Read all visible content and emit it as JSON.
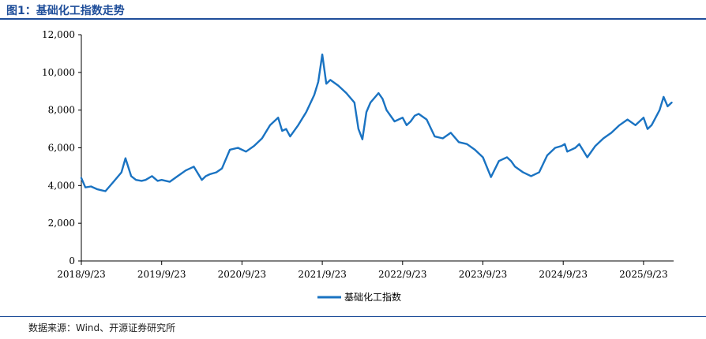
{
  "header": {
    "title": "图1：基础化工指数走势"
  },
  "footer": {
    "source": "数据来源：Wind、开源证券研究所"
  },
  "colors": {
    "line": "#1a73c2",
    "rule": "#1f4e9a",
    "axis": "#000000"
  },
  "chart_data": {
    "type": "line",
    "title": "图1：基础化工指数走势",
    "xlabel": "",
    "ylabel": "",
    "ylim": [
      0,
      12000
    ],
    "grid": false,
    "legend": "bottom-center",
    "y_ticks": [
      0,
      2000,
      4000,
      6000,
      8000,
      10000,
      12000
    ],
    "y_tick_labels": [
      "0",
      "2,000",
      "4,000",
      "6,000",
      "8,000",
      "10,000",
      "12,000"
    ],
    "x_tick_labels": [
      "2018/9/23",
      "2019/9/23",
      "2020/9/23",
      "2021/9/23",
      "2022/9/23",
      "2023/9/23",
      "2024/9/23",
      "2025/9/23"
    ],
    "x_range_years": [
      0,
      7.35
    ],
    "series": [
      {
        "name": "基础化工指数",
        "x_years": [
          0,
          0.05,
          0.12,
          0.2,
          0.3,
          0.4,
          0.5,
          0.55,
          0.62,
          0.68,
          0.75,
          0.8,
          0.88,
          0.95,
          1.0,
          1.1,
          1.2,
          1.3,
          1.4,
          1.5,
          1.55,
          1.6,
          1.68,
          1.75,
          1.85,
          1.95,
          2.05,
          2.15,
          2.25,
          2.35,
          2.45,
          2.5,
          2.55,
          2.6,
          2.7,
          2.8,
          2.9,
          2.95,
          3.0,
          3.05,
          3.1,
          3.2,
          3.3,
          3.4,
          3.45,
          3.5,
          3.55,
          3.6,
          3.7,
          3.75,
          3.8,
          3.9,
          4.0,
          4.05,
          4.1,
          4.15,
          4.2,
          4.3,
          4.4,
          4.5,
          4.6,
          4.7,
          4.8,
          4.9,
          5.0,
          5.1,
          5.2,
          5.3,
          5.35,
          5.4,
          5.5,
          5.6,
          5.7,
          5.8,
          5.9,
          5.98,
          6.02,
          6.05,
          6.1,
          6.15,
          6.2,
          6.3,
          6.4,
          6.5,
          6.6,
          6.7,
          6.8,
          6.9,
          7.0,
          7.05,
          7.1,
          7.2,
          7.25,
          7.3,
          7.35
        ],
        "values": [
          4400,
          3900,
          3950,
          3800,
          3700,
          4200,
          4700,
          5450,
          4500,
          4300,
          4250,
          4300,
          4500,
          4250,
          4300,
          4200,
          4500,
          4800,
          5000,
          4300,
          4500,
          4600,
          4700,
          4900,
          5900,
          6000,
          5800,
          6100,
          6500,
          7200,
          7600,
          6900,
          7000,
          6600,
          7200,
          7900,
          8800,
          9500,
          10950,
          9400,
          9600,
          9300,
          8900,
          8400,
          7000,
          6450,
          7900,
          8400,
          8900,
          8600,
          8000,
          7400,
          7600,
          7200,
          7400,
          7700,
          7800,
          7500,
          6600,
          6500,
          6800,
          6300,
          6200,
          5900,
          5500,
          4450,
          5300,
          5500,
          5300,
          5000,
          4700,
          4500,
          4700,
          5600,
          6000,
          6100,
          6200,
          5800,
          5900,
          6000,
          6200,
          5500,
          6100,
          6500,
          6800,
          7200,
          7500,
          7200,
          7600,
          7000,
          7200,
          8000,
          8700,
          8200,
          8400
        ]
      }
    ]
  }
}
